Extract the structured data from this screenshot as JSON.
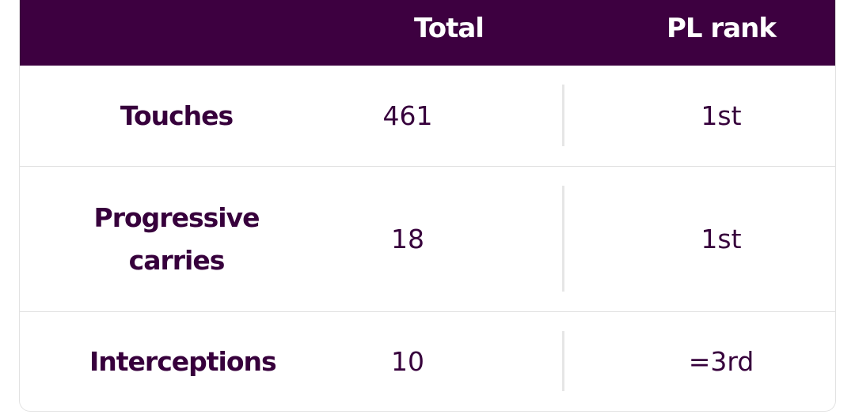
{
  "table": {
    "header": [
      "Total",
      "PL rank"
    ],
    "rows": [
      [
        "Touches",
        461,
        "1st"
      ],
      [
        "Progressive carries",
        18,
        "1st"
      ],
      [
        "Interceptions",
        10,
        "=3rd"
      ]
    ]
  }
}
